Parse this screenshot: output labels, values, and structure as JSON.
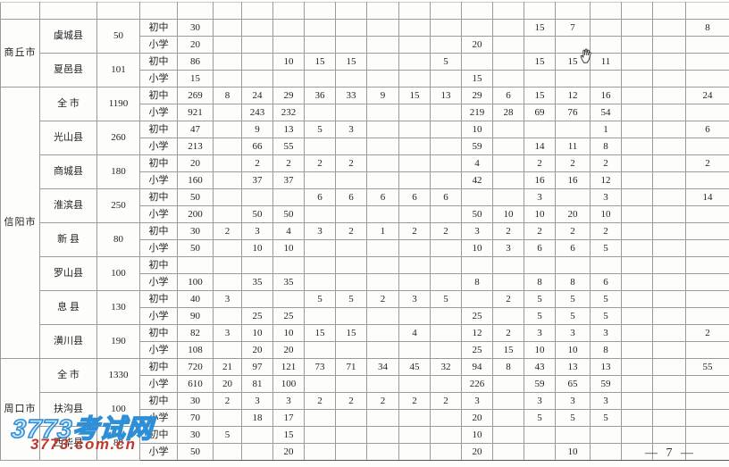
{
  "page": {
    "number_label": "— 7 —"
  },
  "watermark": {
    "line1": "3773考试网",
    "line2": "3773.com.cn"
  },
  "table": {
    "sections": [
      {
        "city": "商丘市",
        "counties": [
          {
            "name": "虞城县",
            "total": "50",
            "rows": [
              {
                "level": "初中",
                "values": [
                  "30",
                  "",
                  "",
                  "",
                  "",
                  "",
                  "",
                  "",
                  "",
                  "",
                  "",
                  "15",
                  "7",
                  "",
                  "",
                  "",
                  "8"
                ]
              },
              {
                "level": "小学",
                "values": [
                  "20",
                  "",
                  "",
                  "",
                  "",
                  "",
                  "",
                  "",
                  "",
                  "20",
                  "",
                  "",
                  "",
                  "",
                  "",
                  "",
                  ""
                ]
              }
            ]
          },
          {
            "name": "夏邑县",
            "total": "101",
            "rows": [
              {
                "level": "初中",
                "values": [
                  "86",
                  "",
                  "",
                  "10",
                  "15",
                  "15",
                  "",
                  "",
                  "5",
                  "",
                  "",
                  "15",
                  "15",
                  "11",
                  "",
                  "",
                  ""
                ]
              },
              {
                "level": "小学",
                "values": [
                  "15",
                  "",
                  "",
                  "",
                  "",
                  "",
                  "",
                  "",
                  "",
                  "15",
                  "",
                  "",
                  "",
                  "",
                  "",
                  "",
                  ""
                ]
              }
            ]
          }
        ]
      },
      {
        "city": "信阳市",
        "counties": [
          {
            "name": "全 市",
            "total": "1190",
            "rows": [
              {
                "level": "初中",
                "values": [
                  "269",
                  "8",
                  "24",
                  "29",
                  "36",
                  "33",
                  "9",
                  "15",
                  "13",
                  "29",
                  "6",
                  "15",
                  "12",
                  "16",
                  "",
                  "",
                  "24"
                ]
              },
              {
                "level": "小学",
                "values": [
                  "921",
                  "",
                  "243",
                  "232",
                  "",
                  "",
                  "",
                  "",
                  "",
                  "219",
                  "28",
                  "69",
                  "76",
                  "54",
                  "",
                  "",
                  ""
                ]
              }
            ]
          },
          {
            "name": "光山县",
            "total": "260",
            "rows": [
              {
                "level": "初中",
                "values": [
                  "47",
                  "",
                  "9",
                  "13",
                  "5",
                  "3",
                  "",
                  "",
                  "",
                  "10",
                  "",
                  "",
                  "",
                  "1",
                  "",
                  "",
                  "6"
                ]
              },
              {
                "level": "小学",
                "values": [
                  "213",
                  "",
                  "66",
                  "55",
                  "",
                  "",
                  "",
                  "",
                  "",
                  "59",
                  "",
                  "14",
                  "11",
                  "8",
                  "",
                  "",
                  ""
                ]
              }
            ]
          },
          {
            "name": "商城县",
            "total": "180",
            "rows": [
              {
                "level": "初中",
                "values": [
                  "20",
                  "",
                  "2",
                  "2",
                  "2",
                  "2",
                  "",
                  "",
                  "",
                  "4",
                  "",
                  "2",
                  "2",
                  "2",
                  "",
                  "",
                  "2"
                ]
              },
              {
                "level": "小学",
                "values": [
                  "160",
                  "",
                  "37",
                  "37",
                  "",
                  "",
                  "",
                  "",
                  "",
                  "42",
                  "",
                  "16",
                  "16",
                  "12",
                  "",
                  "",
                  ""
                ]
              }
            ]
          },
          {
            "name": "淮滨县",
            "total": "250",
            "rows": [
              {
                "level": "初中",
                "values": [
                  "50",
                  "",
                  "",
                  "",
                  "6",
                  "6",
                  "6",
                  "6",
                  "6",
                  "",
                  "",
                  "3",
                  "",
                  "3",
                  "",
                  "",
                  "14"
                ]
              },
              {
                "level": "小学",
                "values": [
                  "200",
                  "",
                  "50",
                  "50",
                  "",
                  "",
                  "",
                  "",
                  "",
                  "50",
                  "10",
                  "10",
                  "20",
                  "10",
                  "",
                  "",
                  ""
                ]
              }
            ]
          },
          {
            "name": "新 县",
            "total": "80",
            "rows": [
              {
                "level": "初中",
                "values": [
                  "30",
                  "2",
                  "3",
                  "4",
                  "3",
                  "2",
                  "1",
                  "2",
                  "2",
                  "3",
                  "2",
                  "2",
                  "2",
                  "2",
                  "",
                  "",
                  ""
                ]
              },
              {
                "level": "小学",
                "values": [
                  "50",
                  "",
                  "10",
                  "10",
                  "",
                  "",
                  "",
                  "",
                  "",
                  "10",
                  "3",
                  "6",
                  "6",
                  "5",
                  "",
                  "",
                  ""
                ]
              }
            ]
          },
          {
            "name": "罗山县",
            "total": "100",
            "rows": [
              {
                "level": "初中",
                "values": [
                  "",
                  "",
                  "",
                  "",
                  "",
                  "",
                  "",
                  "",
                  "",
                  "",
                  "",
                  "",
                  "",
                  "",
                  "",
                  "",
                  ""
                ]
              },
              {
                "level": "小学",
                "values": [
                  "100",
                  "",
                  "35",
                  "35",
                  "",
                  "",
                  "",
                  "",
                  "",
                  "8",
                  "",
                  "8",
                  "8",
                  "6",
                  "",
                  "",
                  ""
                ]
              }
            ]
          },
          {
            "name": "息 县",
            "total": "130",
            "rows": [
              {
                "level": "初中",
                "values": [
                  "40",
                  "3",
                  "",
                  "",
                  "5",
                  "5",
                  "2",
                  "3",
                  "5",
                  "",
                  "2",
                  "5",
                  "5",
                  "5",
                  "",
                  "",
                  ""
                ]
              },
              {
                "level": "小学",
                "values": [
                  "90",
                  "",
                  "25",
                  "25",
                  "",
                  "",
                  "",
                  "",
                  "",
                  "25",
                  "",
                  "5",
                  "5",
                  "5",
                  "",
                  "",
                  ""
                ]
              }
            ]
          },
          {
            "name": "潢川县",
            "total": "190",
            "rows": [
              {
                "level": "初中",
                "values": [
                  "82",
                  "3",
                  "10",
                  "10",
                  "15",
                  "15",
                  "",
                  "4",
                  "",
                  "12",
                  "2",
                  "3",
                  "3",
                  "3",
                  "",
                  "",
                  "2"
                ]
              },
              {
                "level": "小学",
                "values": [
                  "108",
                  "",
                  "20",
                  "20",
                  "",
                  "",
                  "",
                  "",
                  "",
                  "25",
                  "15",
                  "10",
                  "10",
                  "8",
                  "",
                  "",
                  ""
                ]
              }
            ]
          }
        ]
      },
      {
        "city": "周口市",
        "counties": [
          {
            "name": "全 市",
            "total": "1330",
            "rows": [
              {
                "level": "初中",
                "values": [
                  "720",
                  "21",
                  "97",
                  "121",
                  "73",
                  "71",
                  "34",
                  "45",
                  "32",
                  "94",
                  "8",
                  "43",
                  "13",
                  "13",
                  "",
                  "",
                  "55"
                ]
              },
              {
                "level": "小学",
                "values": [
                  "610",
                  "20",
                  "81",
                  "100",
                  "",
                  "",
                  "",
                  "",
                  "",
                  "226",
                  "",
                  "59",
                  "65",
                  "59",
                  "",
                  "",
                  ""
                ]
              }
            ]
          },
          {
            "name": "扶沟县",
            "total": "100",
            "rows": [
              {
                "level": "初中",
                "values": [
                  "30",
                  "2",
                  "3",
                  "3",
                  "2",
                  "2",
                  "2",
                  "2",
                  "2",
                  "3",
                  "",
                  "3",
                  "3",
                  "3",
                  "",
                  "",
                  ""
                ]
              },
              {
                "level": "小学",
                "values": [
                  "70",
                  "",
                  "18",
                  "17",
                  "",
                  "",
                  "",
                  "",
                  "",
                  "20",
                  "",
                  "5",
                  "5",
                  "5",
                  "",
                  "",
                  ""
                ]
              }
            ]
          },
          {
            "name": "西华县",
            "total": "80",
            "rows": [
              {
                "level": "初中",
                "values": [
                  "30",
                  "5",
                  "",
                  "15",
                  "",
                  "",
                  "",
                  "",
                  "",
                  "10",
                  "",
                  "",
                  "",
                  "",
                  "",
                  "",
                  ""
                ]
              },
              {
                "level": "小学",
                "values": [
                  "50",
                  "",
                  "",
                  "20",
                  "",
                  "",
                  "",
                  "",
                  "",
                  "20",
                  "",
                  "",
                  "10",
                  "",
                  "",
                  "",
                  ""
                ]
              }
            ]
          }
        ]
      }
    ]
  }
}
